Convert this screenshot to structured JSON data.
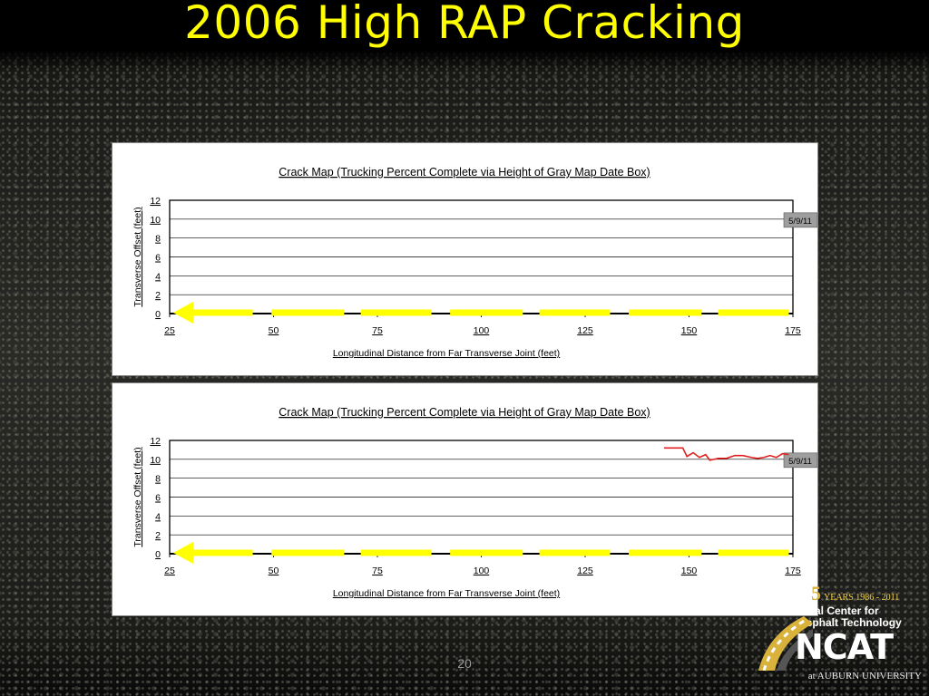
{
  "slide": {
    "title": "2006 High RAP Cracking",
    "page_number": "20"
  },
  "logo": {
    "big_digit": "5",
    "years": "YEARS 1986 - 2011",
    "org_line1": "ional Center for",
    "org_line2": "Asphalt Technology",
    "acronym": "NCAT",
    "university": "at AUBURN UNIVERSITY"
  },
  "colors": {
    "title": "#ffff00",
    "lane_marking": "#ffff00",
    "crack": "#e02020",
    "date_box": "#9e9e9e"
  },
  "chart_data": [
    {
      "type": "line",
      "title": "Crack Map (Trucking Percent Complete via Height of Gray Map Date Box)",
      "xlabel": "Longitudinal Distance from Far Transverse Joint (feet)",
      "ylabel": "Transverse Offset (feet)",
      "xlim": [
        25,
        175
      ],
      "ylim": [
        0,
        12
      ],
      "xticks": [
        "25",
        "50",
        "75",
        "100",
        "125",
        "150",
        "175"
      ],
      "yticks": [
        "0",
        "2",
        "4",
        "6",
        "8",
        "10",
        "12"
      ],
      "grid": true,
      "date_box": {
        "label": "5/9/11",
        "percent_complete": 100
      },
      "lane_marking": {
        "y": 0,
        "dashes": [
          [
            28,
            45
          ],
          [
            49.5,
            67
          ],
          [
            71,
            88
          ],
          [
            92.5,
            110
          ],
          [
            114,
            131
          ],
          [
            135.5,
            153
          ],
          [
            157,
            174
          ]
        ]
      },
      "series": [
        {
          "values": []
        }
      ]
    },
    {
      "type": "line",
      "title": "Crack Map (Trucking Percent Complete via Height of Gray Map Date Box)",
      "xlabel": "Longitudinal Distance from Far Transverse Joint (feet)",
      "ylabel": "Transverse Offset (feet)",
      "xlim": [
        25,
        175
      ],
      "ylim": [
        0,
        12
      ],
      "xticks": [
        "25",
        "50",
        "75",
        "100",
        "125",
        "150",
        "175"
      ],
      "yticks": [
        "0",
        "2",
        "4",
        "6",
        "8",
        "10",
        "12"
      ],
      "grid": true,
      "date_box": {
        "label": "5/9/11",
        "percent_complete": 100
      },
      "lane_marking": {
        "y": 0,
        "dashes": [
          [
            28,
            45
          ],
          [
            49.5,
            67
          ],
          [
            71,
            88
          ],
          [
            92.5,
            110
          ],
          [
            114,
            131
          ],
          [
            135.5,
            153
          ],
          [
            157,
            174
          ]
        ]
      },
      "series": [
        {
          "values": [
            [
              144,
              11.2
            ],
            [
              147,
              11.2
            ],
            [
              148.5,
              11.2
            ],
            [
              149.5,
              10.3
            ],
            [
              151,
              10.7
            ],
            [
              152.5,
              10.2
            ],
            [
              154,
              10.5
            ],
            [
              155,
              9.9
            ],
            [
              157,
              10.1
            ],
            [
              159,
              10.1
            ],
            [
              161,
              10.4
            ],
            [
              163,
              10.4
            ],
            [
              165,
              10.2
            ],
            [
              166.5,
              10.1
            ],
            [
              168,
              10.2
            ],
            [
              169.5,
              10.4
            ],
            [
              171,
              10.2
            ],
            [
              172.5,
              10.6
            ],
            [
              174,
              10.5
            ]
          ]
        }
      ]
    }
  ]
}
